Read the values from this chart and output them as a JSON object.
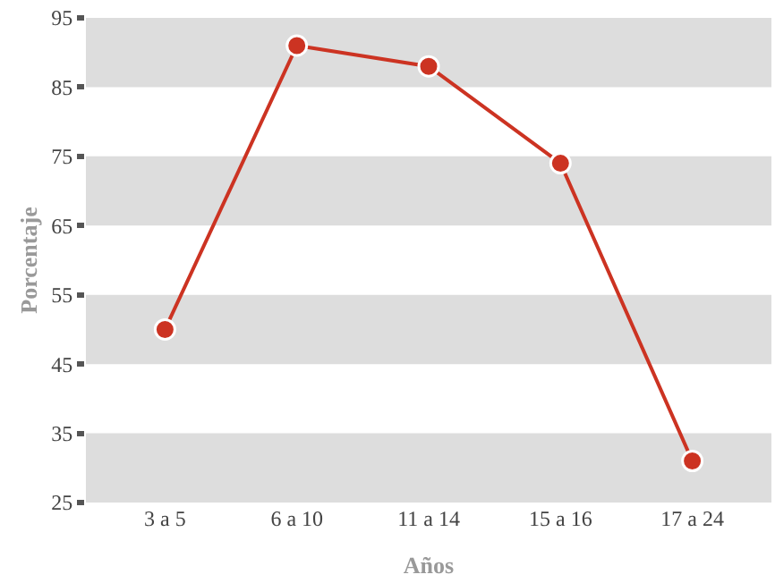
{
  "chart_data": {
    "type": "line",
    "xlabel": "Años",
    "ylabel": "Porcentaje",
    "categories": [
      "3 a 5",
      "6 a 10",
      "11 a 14",
      "15 a 16",
      "17 a 24"
    ],
    "series": [
      {
        "color": "#cc3322",
        "values": [
          50,
          91,
          88,
          74,
          31
        ]
      }
    ],
    "ylim": [
      25,
      95
    ],
    "yticks": [
      25,
      35,
      45,
      55,
      65,
      75,
      85,
      95
    ],
    "bands": [
      {
        "axis": "y",
        "from": 85,
        "to": 95,
        "color": "#dddddd"
      },
      {
        "axis": "y",
        "from": 65,
        "to": 75,
        "color": "#dddddd"
      },
      {
        "axis": "y",
        "from": 45,
        "to": 55,
        "color": "#dddddd"
      },
      {
        "axis": "y",
        "from": 25,
        "to": 35,
        "color": "#dddddd"
      }
    ],
    "marker": "circle",
    "line_style": "solid",
    "grid": false
  }
}
